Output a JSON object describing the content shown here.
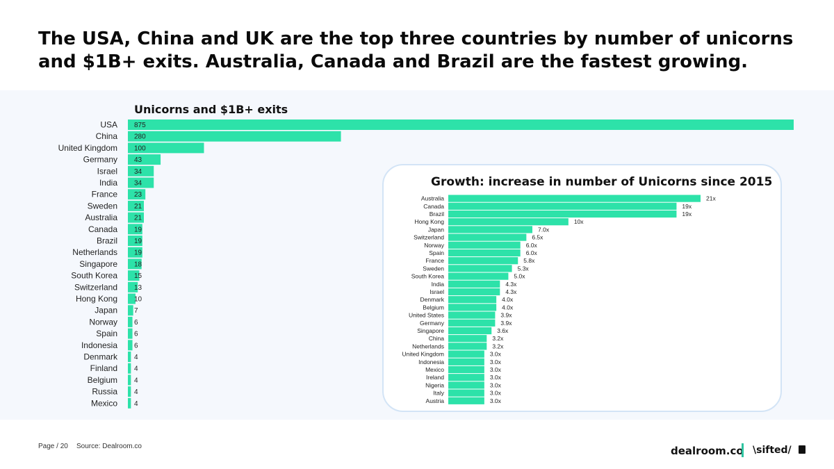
{
  "headline": "The USA, China and UK are the top three countries by number of unicorns and $1B+ exits. Australia, Canada and Brazil are the fastest growing.",
  "footer": {
    "page": "Page / 20",
    "source": "Source: Dealroom.co"
  },
  "brand": {
    "dealroom": "dealroom.co",
    "sifted": "\\sifted/"
  },
  "colors": {
    "bar": "#2de2a9",
    "panel": "#f5f8fd",
    "inset_border": "#d3e4f6",
    "divider": "#2ec4a0"
  },
  "chart_data": [
    {
      "type": "bar",
      "orientation": "horizontal",
      "title": "Unicorns and $1B+ exits",
      "categories": [
        "USA",
        "China",
        "United Kingdom",
        "Germany",
        "Israel",
        "India",
        "France",
        "Sweden",
        "Australia",
        "Canada",
        "Brazil",
        "Netherlands",
        "Singapore",
        "South Korea",
        "Switzerland",
        "Hong Kong",
        "Japan",
        "Norway",
        "Spain",
        "Indonesia",
        "Denmark",
        "Finland",
        "Belgium",
        "Russia",
        "Mexico"
      ],
      "values": [
        875,
        280,
        100,
        43,
        34,
        34,
        23,
        21,
        21,
        19,
        19,
        19,
        18,
        15,
        13,
        10,
        7,
        6,
        6,
        6,
        4,
        4,
        4,
        4,
        4
      ],
      "labels": [
        "875",
        "280",
        "100",
        "43",
        "34",
        "34",
        "23",
        "21",
        "21",
        "19",
        "19",
        "19",
        "18",
        "15",
        "13",
        "10",
        "7",
        "6",
        "6",
        "6",
        "4",
        "4",
        "4",
        "4",
        "4"
      ]
    },
    {
      "type": "bar",
      "orientation": "horizontal",
      "title": "Growth: increase in number of Unicorns since 2015",
      "categories": [
        "Australia",
        "Canada",
        "Brazil",
        "Hong Kong",
        "Japan",
        "Switzerland",
        "Norway",
        "Spain",
        "France",
        "Sweden",
        "South Korea",
        "India",
        "Israel",
        "Denmark",
        "Belgium",
        "United States",
        "Germany",
        "Singapore",
        "China",
        "Netherlands",
        "United Kingdom",
        "Indonesia",
        "Mexico",
        "Ireland",
        "Nigeria",
        "Italy",
        "Austria"
      ],
      "values": [
        21,
        19,
        19,
        10,
        7.0,
        6.5,
        6.0,
        6.0,
        5.8,
        5.3,
        5.0,
        4.3,
        4.3,
        4.0,
        4.0,
        3.9,
        3.9,
        3.6,
        3.2,
        3.2,
        3.0,
        3.0,
        3.0,
        3.0,
        3.0,
        3.0,
        3.0
      ],
      "labels": [
        "21x",
        "19x",
        "19x",
        "10x",
        "7.0x",
        "6.5x",
        "6.0x",
        "6.0x",
        "5.8x",
        "5.3x",
        "5.0x",
        "4.3x",
        "4.3x",
        "4.0x",
        "4.0x",
        "3.9x",
        "3.9x",
        "3.6x",
        "3.2x",
        "3.2x",
        "3.0x",
        "3.0x",
        "3.0x",
        "3.0x",
        "3.0x",
        "3.0x",
        "3.0x"
      ]
    }
  ]
}
